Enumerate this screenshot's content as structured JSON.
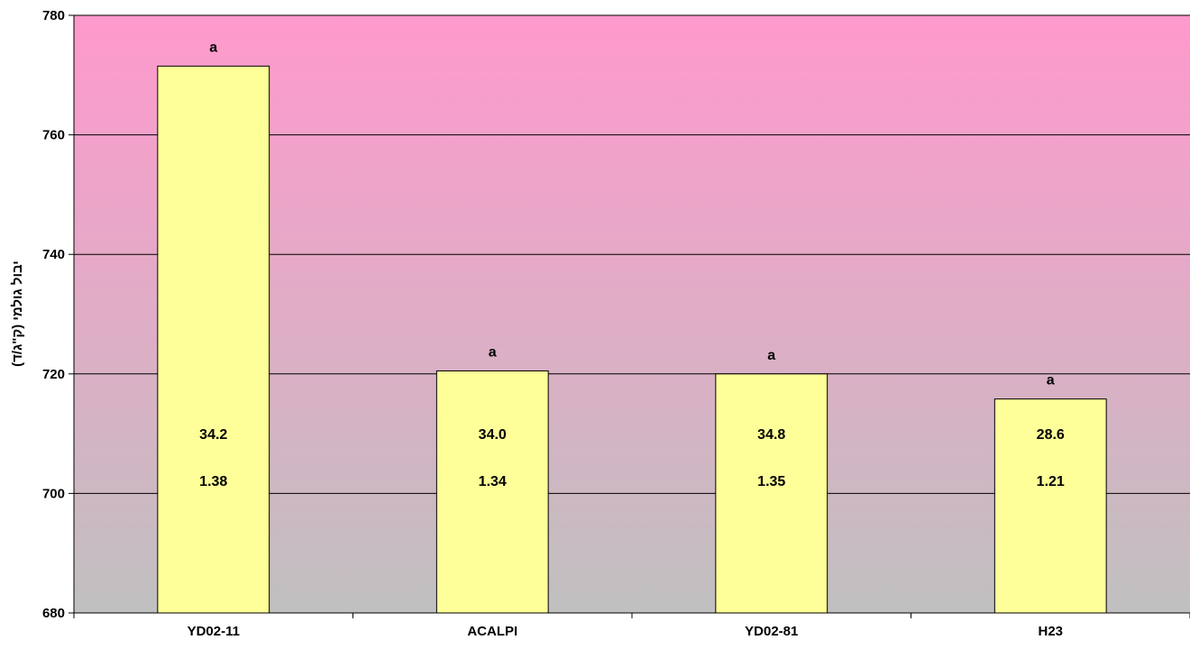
{
  "chart_data": {
    "type": "bar",
    "ylabel": "יבול גולמי (ק\"ג/ד)",
    "ylim": [
      680,
      780
    ],
    "yticks": [
      680,
      700,
      720,
      740,
      760,
      780
    ],
    "grid": true,
    "colors": {
      "bar_fill": "#ffff99",
      "bar_stroke": "#000000",
      "bg_top": "#ff99cc",
      "bg_bottom": "#c0c0c0",
      "gridline": "#000000"
    },
    "categories": [
      "YD02-11",
      "ACALPI",
      "YD02-81",
      "H23"
    ],
    "values": [
      771.5,
      720.5,
      720.0,
      715.8
    ],
    "significance": [
      "a",
      "a",
      "a",
      "a"
    ],
    "inner_labels_1": [
      "34.2",
      "34.0",
      "34.8",
      "28.6"
    ],
    "inner_labels_2": [
      "1.38",
      "1.34",
      "1.35",
      "1.21"
    ]
  }
}
